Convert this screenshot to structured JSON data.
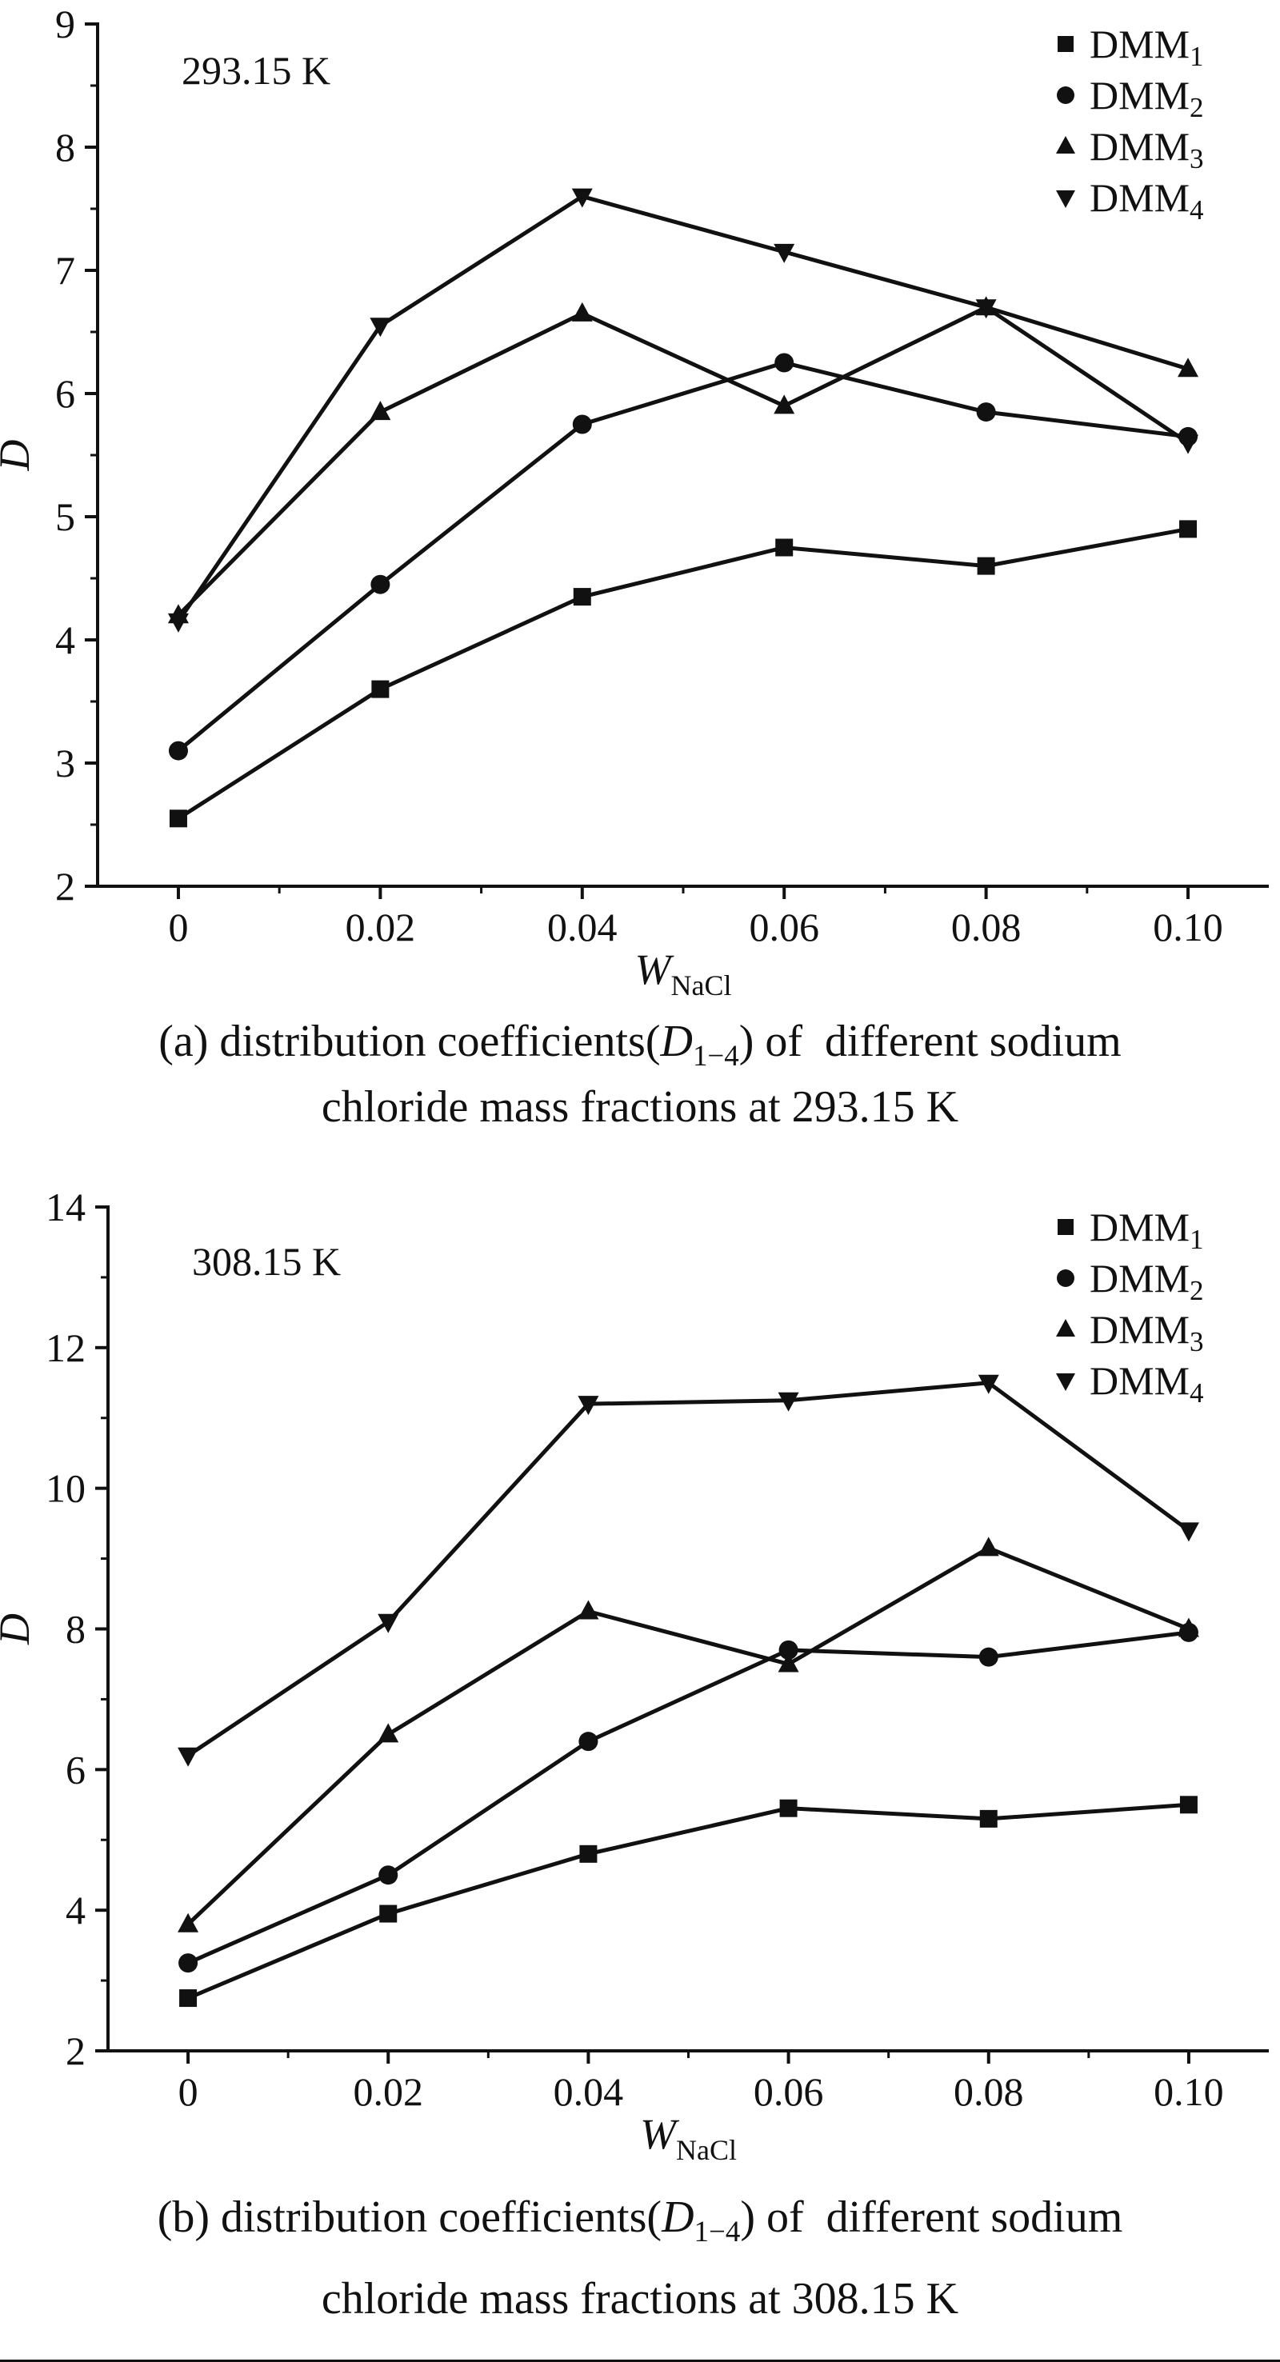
{
  "page": {
    "background": "#ffffff",
    "ink": "#111111"
  },
  "chart_data": [
    {
      "id": "a",
      "type": "line",
      "temperature_label": "293.15 K",
      "ylabel": "D",
      "xlabel": {
        "base": "W",
        "sub": "NaCl"
      },
      "x": [
        0,
        0.02,
        0.04,
        0.06,
        0.08,
        0.1
      ],
      "xtick_labels": [
        "0",
        "0.02",
        "0.04",
        "0.06",
        "0.08",
        "0.10"
      ],
      "xlim": [
        -0.008,
        0.108
      ],
      "ylim": [
        2,
        9
      ],
      "yticks": [
        2,
        3,
        4,
        5,
        6,
        7,
        8,
        9
      ],
      "y_minor_step": 0.5,
      "grid": false,
      "legend_position": "top-right-inside",
      "series": [
        {
          "name": "DMM",
          "sub": "1",
          "marker": "square",
          "values": [
            2.55,
            3.6,
            4.35,
            4.75,
            4.6,
            4.9
          ]
        },
        {
          "name": "DMM",
          "sub": "2",
          "marker": "circle",
          "values": [
            3.1,
            4.45,
            5.75,
            6.25,
            5.85,
            5.65
          ]
        },
        {
          "name": "DMM",
          "sub": "3",
          "marker": "triangle-up",
          "values": [
            4.2,
            5.85,
            6.65,
            5.9,
            6.7,
            6.2
          ]
        },
        {
          "name": "DMM",
          "sub": "4",
          "marker": "triangle-down",
          "values": [
            4.15,
            6.55,
            7.6,
            7.15,
            6.7,
            5.6
          ]
        }
      ],
      "caption": {
        "pre": "(a) distribution coefficients(",
        "symbol": "D",
        "symbol_sub": "1−4",
        "post": ") of  different sodium",
        "line2": "chloride mass fractions at 293.15 K"
      }
    },
    {
      "id": "b",
      "type": "line",
      "temperature_label": "308.15 K",
      "ylabel": "D",
      "xlabel": {
        "base": "W",
        "sub": "NaCl"
      },
      "x": [
        0,
        0.02,
        0.04,
        0.06,
        0.08,
        0.1
      ],
      "xtick_labels": [
        "0",
        "0.02",
        "0.04",
        "0.06",
        "0.08",
        "0.10"
      ],
      "xlim": [
        -0.008,
        0.108
      ],
      "ylim": [
        2,
        14
      ],
      "yticks": [
        2,
        4,
        6,
        8,
        10,
        12,
        14
      ],
      "y_minor_step": 1,
      "grid": false,
      "legend_position": "top-right-inside",
      "series": [
        {
          "name": "DMM",
          "sub": "1",
          "marker": "square",
          "values": [
            2.75,
            3.95,
            4.8,
            5.45,
            5.3,
            5.5
          ]
        },
        {
          "name": "DMM",
          "sub": "2",
          "marker": "circle",
          "values": [
            3.25,
            4.5,
            6.4,
            7.7,
            7.6,
            7.95
          ]
        },
        {
          "name": "DMM",
          "sub": "3",
          "marker": "triangle-up",
          "values": [
            3.8,
            6.5,
            8.25,
            7.5,
            9.15,
            8.0
          ]
        },
        {
          "name": "DMM",
          "sub": "4",
          "marker": "triangle-down",
          "values": [
            6.2,
            8.1,
            11.2,
            11.25,
            11.5,
            9.4
          ]
        }
      ],
      "caption": {
        "pre": "(b) distribution coefficients(",
        "symbol": "D",
        "symbol_sub": "1−4",
        "post": ") of  different sodium",
        "line2": "chloride mass fractions at 308.15 K"
      }
    }
  ]
}
